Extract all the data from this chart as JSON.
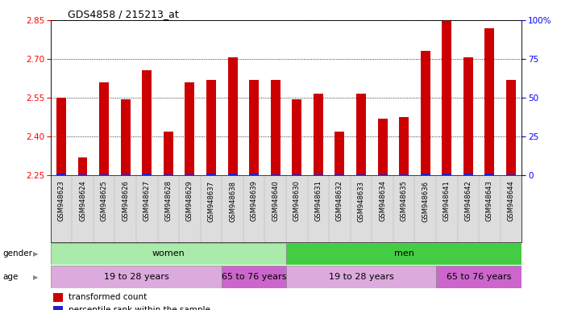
{
  "title": "GDS4858 / 215213_at",
  "samples": [
    "GSM948623",
    "GSM948624",
    "GSM948625",
    "GSM948626",
    "GSM948627",
    "GSM948628",
    "GSM948629",
    "GSM948637",
    "GSM948638",
    "GSM948639",
    "GSM948640",
    "GSM948630",
    "GSM948631",
    "GSM948632",
    "GSM948633",
    "GSM948634",
    "GSM948635",
    "GSM948636",
    "GSM948641",
    "GSM948642",
    "GSM948643",
    "GSM948644"
  ],
  "transformed_count": [
    2.55,
    2.32,
    2.61,
    2.545,
    2.655,
    2.42,
    2.61,
    2.62,
    2.705,
    2.62,
    2.62,
    2.545,
    2.565,
    2.42,
    2.565,
    2.47,
    2.475,
    2.73,
    2.87,
    2.705,
    2.82,
    2.62
  ],
  "percentile_rank": [
    8,
    3,
    3,
    5,
    9,
    2,
    5,
    7,
    10,
    7,
    6,
    5,
    6,
    3,
    6,
    3,
    4,
    10,
    10,
    9,
    10,
    6
  ],
  "y_min": 2.25,
  "y_max": 2.85,
  "y_ticks": [
    2.25,
    2.4,
    2.55,
    2.7,
    2.85
  ],
  "right_y_ticks": [
    0,
    25,
    50,
    75,
    100
  ],
  "right_y_labels": [
    "0",
    "25",
    "50",
    "75",
    "100%"
  ],
  "bar_color": "#cc0000",
  "percentile_color": "#2222cc",
  "background_color": "#ffffff",
  "plot_bg_color": "#ffffff",
  "gender_groups": [
    {
      "label": "women",
      "start": 0,
      "end": 10,
      "color": "#aaeaaa"
    },
    {
      "label": "men",
      "start": 11,
      "end": 21,
      "color": "#44cc44"
    }
  ],
  "age_groups": [
    {
      "label": "19 to 28 years",
      "start": 0,
      "end": 7,
      "color": "#ddaadd"
    },
    {
      "label": "65 to 76 years",
      "start": 8,
      "end": 10,
      "color": "#cc66cc"
    },
    {
      "label": "19 to 28 years",
      "start": 11,
      "end": 17,
      "color": "#ddaadd"
    },
    {
      "label": "65 to 76 years",
      "start": 18,
      "end": 21,
      "color": "#cc66cc"
    }
  ],
  "legend_items": [
    {
      "label": "transformed count",
      "color": "#cc0000"
    },
    {
      "label": "percentile rank within the sample",
      "color": "#2222cc"
    }
  ],
  "bar_width": 0.45
}
